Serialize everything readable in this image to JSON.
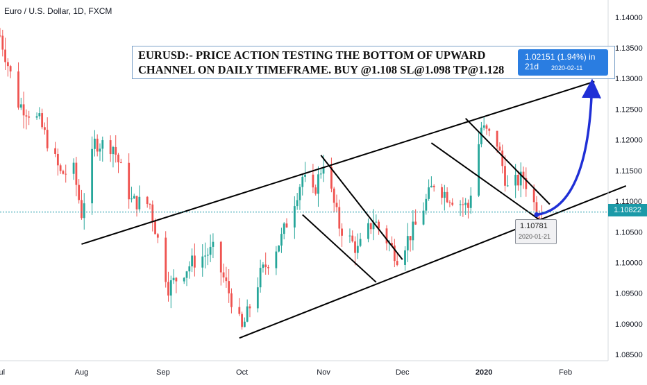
{
  "header": {
    "symbol": "Euro / U.S. Dollar, 1D, FXCM"
  },
  "annotation": {
    "line1": "EURUSD:- PRICE ACTION TESTING THE BOTTOM OF UPWARD",
    "line2": "CHANNEL ON DAILY TIMEFRAME. BUY @1.108 SL@1.098 TP@1.128"
  },
  "target_label": {
    "text": "1.02151 (1.94%) in 21d",
    "date": "2020-02-11"
  },
  "low_label": {
    "price": "1.10781",
    "date": "2020-01-21"
  },
  "current_price": {
    "text": "1.10822",
    "value": 1.10822
  },
  "colors": {
    "up": "#26a69a",
    "down": "#ef5350",
    "projection": "#1f2fd6",
    "price_line": "#1b9aa8"
  },
  "chart_data": {
    "type": "candlestick",
    "title": "Euro / U.S. Dollar, 1D, FXCM",
    "xlabel": "",
    "ylabel": "",
    "ylim": [
      1.084,
      1.1428
    ],
    "y_ticks": [
      "1.14000",
      "1.13500",
      "1.13000",
      "1.12500",
      "1.12000",
      "1.11500",
      "1.11000",
      "1.10500",
      "1.10000",
      "1.09500",
      "1.09000",
      "1.08500"
    ],
    "x_ticks": [
      "Jul",
      "Aug",
      "Sep",
      "Oct",
      "Nov",
      "Dec",
      "2020",
      "Feb"
    ],
    "x_tick_dates": [
      "2019-07-01",
      "2019-08-01",
      "2019-09-01",
      "2019-10-01",
      "2019-11-01",
      "2019-12-01",
      "2020-01-01",
      "2020-02-01"
    ],
    "date_range": [
      "2019-07-01",
      "2020-01-23"
    ],
    "grid": false,
    "price_keypoints": [
      [
        "2019-07-01",
        1.137
      ],
      [
        "2019-07-08",
        1.126
      ],
      [
        "2019-07-16",
        1.123
      ],
      [
        "2019-07-24",
        1.1145
      ],
      [
        "2019-07-29",
        1.115
      ],
      [
        "2019-08-01",
        1.108
      ],
      [
        "2019-08-06",
        1.1195
      ],
      [
        "2019-08-13",
        1.119
      ],
      [
        "2019-08-20",
        1.11
      ],
      [
        "2019-08-27",
        1.1095
      ],
      [
        "2019-09-03",
        1.096
      ],
      [
        "2019-09-12",
        1.1
      ],
      [
        "2019-09-20",
        1.102
      ],
      [
        "2019-09-27",
        1.094
      ],
      [
        "2019-10-01",
        1.089
      ],
      [
        "2019-10-08",
        1.098
      ],
      [
        "2019-10-16",
        1.104
      ],
      [
        "2019-10-24",
        1.114
      ],
      [
        "2019-10-28",
        1.111
      ],
      [
        "2019-11-01",
        1.1165
      ],
      [
        "2019-11-07",
        1.106
      ],
      [
        "2019-11-14",
        1.102
      ],
      [
        "2019-11-20",
        1.107
      ],
      [
        "2019-11-29",
        1.101
      ],
      [
        "2019-12-06",
        1.106
      ],
      [
        "2019-12-13",
        1.113
      ],
      [
        "2019-12-18",
        1.111
      ],
      [
        "2019-12-26",
        1.109
      ],
      [
        "2019-12-31",
        1.122
      ],
      [
        "2020-01-06",
        1.1195
      ],
      [
        "2020-01-10",
        1.112
      ],
      [
        "2020-01-16",
        1.114
      ],
      [
        "2020-01-21",
        1.1085
      ],
      [
        "2020-01-23",
        1.1082
      ]
    ]
  },
  "drawings": {
    "channel_upper": [
      [
        "2019-08-01",
        1.103
      ],
      [
        "2020-02-12",
        1.1295
      ]
    ],
    "channel_lower": [
      [
        "2019-09-30",
        1.0877
      ],
      [
        "2020-02-24",
        1.1125
      ]
    ],
    "trend_lines": [
      [
        [
          "2019-10-31",
          1.1175
        ],
        [
          "2019-12-01",
          1.1005
        ]
      ],
      [
        [
          "2019-10-24",
          1.1078
        ],
        [
          "2019-11-21",
          1.0968
        ]
      ],
      [
        [
          "2019-12-25",
          1.1235
        ],
        [
          "2020-01-26",
          1.1095
        ]
      ],
      [
        [
          "2019-12-12",
          1.1195
        ],
        [
          "2020-01-22",
          1.107
        ]
      ]
    ],
    "projection": [
      [
        "2020-01-21",
        1.1078
      ],
      [
        "2020-02-11",
        1.1293
      ]
    ]
  }
}
